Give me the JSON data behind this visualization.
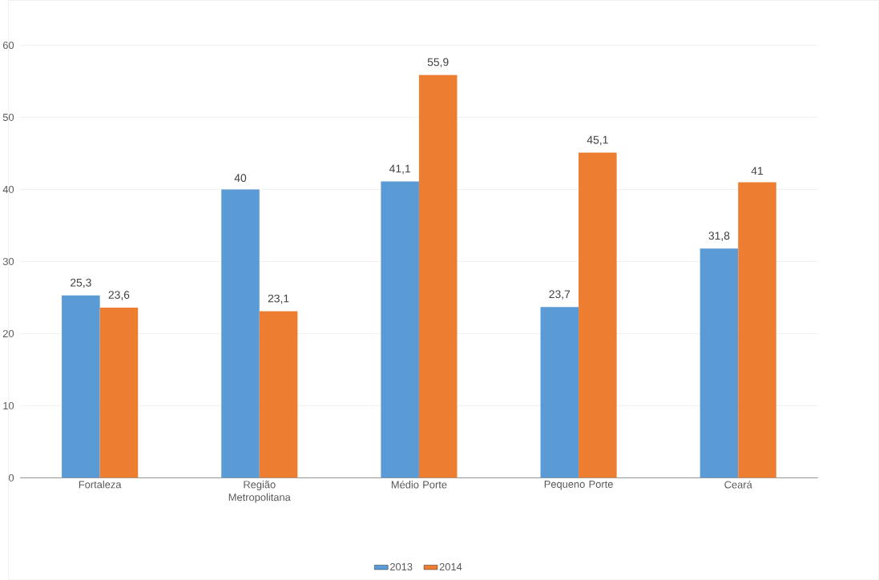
{
  "chart_data": {
    "type": "bar",
    "categories": [
      "Fortaleza",
      "Região Metropolitana",
      "Médio Porte",
      "Pequeno Porte",
      "Ceará"
    ],
    "series": [
      {
        "name": "2013",
        "color": "#5b9bd5",
        "values": [
          25.3,
          40,
          41.1,
          23.7,
          31.8
        ],
        "value_labels": [
          "25,3",
          "40",
          "41,1",
          "23,7",
          "31,8"
        ]
      },
      {
        "name": "2014",
        "color": "#ed7d31",
        "values": [
          23.6,
          23.1,
          55.9,
          45.1,
          41
        ],
        "value_labels": [
          "23,6",
          "23,1",
          "55,9",
          "45,1",
          "41"
        ]
      }
    ],
    "ylim": [
      0,
      60
    ],
    "yticks": [
      0,
      10,
      20,
      30,
      40,
      50,
      60
    ],
    "grid": "y",
    "legend": "bottom"
  }
}
